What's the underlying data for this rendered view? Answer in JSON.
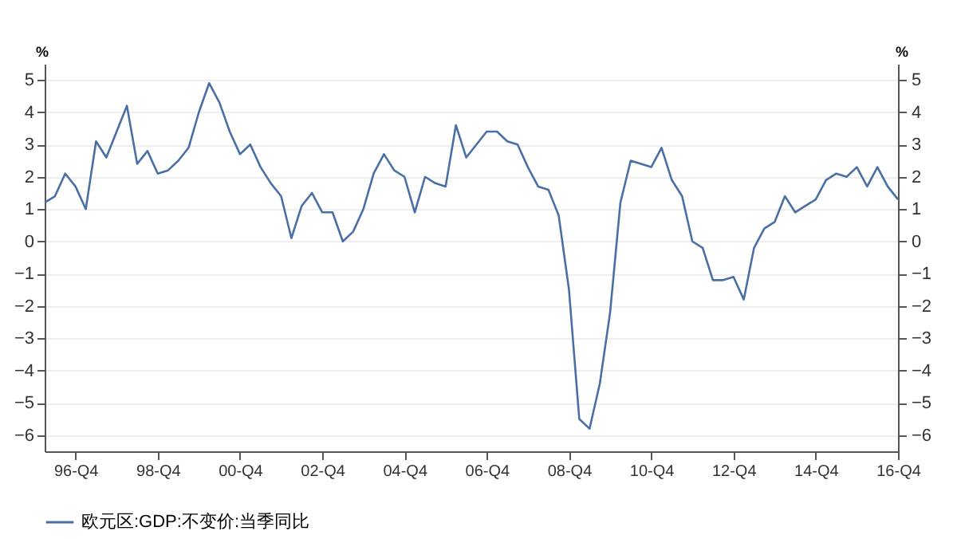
{
  "chart_data": {
    "type": "line",
    "categories": [
      null,
      null,
      null,
      "96-Q4",
      null,
      null,
      null,
      null,
      null,
      null,
      null,
      "98-Q4",
      null,
      null,
      null,
      null,
      null,
      null,
      null,
      "00-Q4",
      null,
      null,
      null,
      null,
      null,
      null,
      null,
      "02-Q4",
      null,
      null,
      null,
      null,
      null,
      null,
      null,
      "04-Q4",
      null,
      null,
      null,
      null,
      null,
      null,
      null,
      "06-Q4",
      null,
      null,
      null,
      null,
      null,
      null,
      null,
      "08-Q4",
      null,
      null,
      null,
      null,
      null,
      null,
      null,
      "10-Q4",
      null,
      null,
      null,
      null,
      null,
      null,
      null,
      "12-Q4",
      null,
      null,
      null,
      null,
      null,
      null,
      null,
      "14-Q4",
      null,
      null,
      null,
      null,
      null,
      null,
      null,
      "16-Q4"
    ],
    "series": [
      {
        "name": "欧元区:GDP:不变价:当季同比",
        "color": "#4a6fa5",
        "values": [
          1.2,
          1.4,
          2.1,
          1.7,
          1.0,
          3.1,
          2.6,
          3.4,
          4.2,
          2.4,
          2.8,
          2.1,
          2.2,
          2.5,
          2.9,
          4.0,
          4.9,
          4.3,
          3.4,
          2.7,
          3.0,
          2.3,
          1.8,
          1.4,
          0.1,
          1.1,
          1.5,
          0.9,
          0.9,
          0.0,
          0.3,
          1.0,
          2.1,
          2.7,
          2.2,
          2.0,
          0.9,
          2.0,
          1.8,
          1.7,
          3.6,
          2.6,
          3.0,
          3.4,
          3.4,
          3.1,
          3.0,
          2.3,
          1.7,
          1.6,
          0.8,
          -1.5,
          -5.5,
          -5.8,
          -4.4,
          -2.2,
          1.2,
          2.5,
          2.4,
          2.3,
          2.9,
          1.9,
          1.4,
          0.0,
          -0.2,
          -1.2,
          -1.2,
          -1.1,
          -1.8,
          -0.2,
          0.4,
          0.6,
          1.4,
          0.9,
          1.1,
          1.3,
          1.9,
          2.1,
          2.0,
          2.3,
          1.7,
          2.3,
          1.7,
          1.3
        ]
      }
    ],
    "ylabel": "%",
    "y2label": "%",
    "ylim": [
      -6.5,
      5.5
    ],
    "yticks": [
      -6,
      -5,
      -4,
      -3,
      -2,
      -1,
      0,
      1,
      2,
      3,
      4,
      5
    ],
    "y2lim": [
      -6.5,
      5.5
    ],
    "y2ticks": [
      -6,
      -5,
      -4,
      -3,
      -2,
      -1,
      0,
      1,
      2,
      3,
      4,
      5
    ],
    "grid": "y",
    "legend": "bottom"
  }
}
